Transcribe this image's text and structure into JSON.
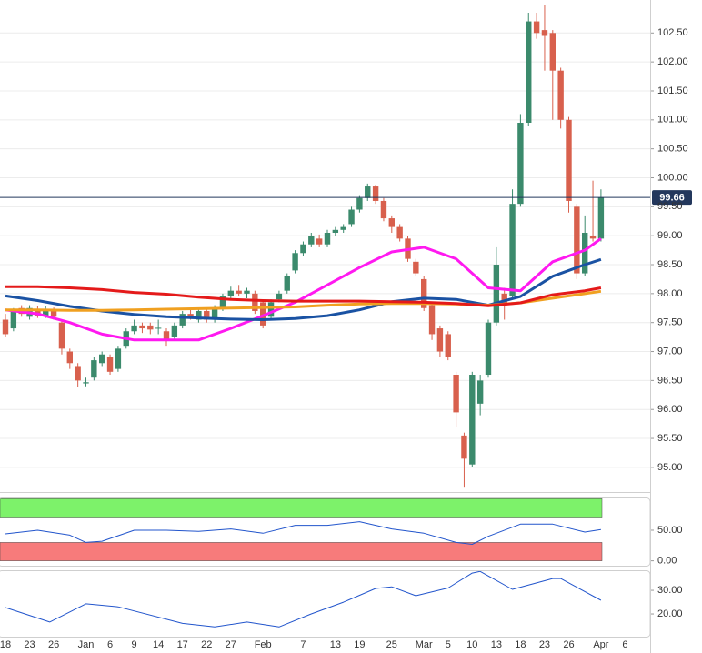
{
  "chart_data": [
    {
      "type": "candlestick",
      "categories": [
        "18",
        null,
        null,
        "23",
        null,
        null,
        "26",
        null,
        null,
        null,
        "Jan",
        null,
        null,
        "6",
        null,
        null,
        "9",
        null,
        null,
        "14",
        null,
        null,
        "17",
        null,
        null,
        "22",
        null,
        null,
        "27",
        null,
        null,
        null,
        "Feb",
        null,
        null,
        null,
        null,
        "7",
        null,
        null,
        null,
        "13",
        null,
        null,
        "19",
        null,
        null,
        null,
        "25",
        null,
        null,
        null,
        "Mar",
        null,
        null,
        "5",
        null,
        null,
        "10",
        null,
        null,
        "13",
        null,
        null,
        "18",
        null,
        null,
        "23",
        null,
        null,
        "26",
        null,
        null,
        null,
        "Apr",
        null,
        null,
        "6"
      ],
      "open": [
        97.55,
        97.4,
        97.75,
        97.6,
        97.72,
        97.62,
        97.7,
        97.5,
        97.0,
        96.75,
        96.45,
        96.55,
        96.8,
        96.9,
        96.7,
        97.1,
        97.35,
        97.45,
        97.45,
        97.4,
        97.35,
        97.25,
        97.45,
        97.65,
        97.55,
        97.7,
        97.55,
        97.75,
        97.95,
        98.05,
        98.0,
        98.0,
        97.85,
        97.6,
        97.9,
        98.05,
        98.4,
        98.7,
        98.85,
        98.95,
        98.85,
        99.05,
        99.1,
        99.2,
        99.45,
        99.65,
        99.85,
        99.6,
        99.3,
        99.15,
        98.95,
        98.55,
        98.25,
        97.8,
        97.4,
        97.3,
        96.6,
        95.55,
        95.05,
        96.1,
        96.6,
        97.5,
        98.0,
        97.95,
        99.55,
        100.95,
        102.7,
        102.55,
        102.5,
        101.85,
        101.0,
        99.5,
        98.35,
        99.0,
        98.95,
        null,
        null,
        null
      ],
      "high": [
        97.65,
        97.75,
        97.8,
        97.8,
        97.78,
        97.78,
        97.76,
        97.55,
        97.05,
        96.8,
        96.55,
        96.9,
        97.0,
        96.95,
        97.1,
        97.4,
        97.55,
        97.5,
        97.5,
        97.55,
        97.4,
        97.5,
        97.7,
        97.72,
        97.75,
        97.75,
        97.8,
        98.0,
        98.12,
        98.15,
        98.1,
        98.05,
        97.9,
        97.9,
        98.05,
        98.35,
        98.75,
        98.9,
        99.05,
        99.02,
        99.1,
        99.15,
        99.2,
        99.5,
        99.7,
        99.9,
        99.88,
        99.65,
        99.35,
        99.2,
        99.0,
        98.6,
        98.3,
        97.85,
        97.45,
        97.35,
        96.65,
        95.6,
        96.65,
        96.6,
        97.55,
        98.8,
        98.1,
        99.8,
        101.1,
        102.85,
        102.85,
        102.98,
        102.55,
        101.9,
        101.05,
        99.55,
        99.35,
        99.95,
        99.8,
        null,
        null,
        null
      ],
      "low": [
        97.25,
        97.35,
        97.6,
        97.55,
        97.58,
        97.58,
        97.55,
        96.95,
        96.7,
        96.38,
        96.4,
        96.5,
        96.75,
        96.6,
        96.65,
        97.05,
        97.3,
        97.32,
        97.3,
        97.3,
        97.1,
        97.2,
        97.4,
        97.55,
        97.5,
        97.5,
        97.5,
        97.7,
        97.9,
        97.95,
        97.92,
        97.65,
        97.4,
        97.55,
        97.85,
        98.0,
        98.35,
        98.65,
        98.8,
        98.8,
        98.8,
        99.0,
        99.05,
        99.15,
        99.4,
        99.6,
        99.55,
        99.25,
        99.05,
        98.9,
        98.55,
        98.3,
        97.7,
        97.2,
        96.9,
        96.85,
        95.7,
        94.65,
        95.0,
        95.9,
        96.55,
        97.45,
        97.55,
        97.9,
        99.5,
        100.9,
        102.4,
        101.85,
        101.0,
        100.85,
        99.4,
        98.25,
        98.3,
        98.9,
        98.9,
        null,
        null,
        null
      ],
      "close": [
        97.3,
        97.7,
        97.65,
        97.75,
        97.62,
        97.72,
        97.6,
        97.05,
        96.8,
        96.5,
        96.47,
        96.85,
        96.95,
        96.65,
        97.05,
        97.35,
        97.45,
        97.4,
        97.38,
        97.41,
        97.2,
        97.45,
        97.65,
        97.6,
        97.7,
        97.55,
        97.75,
        97.95,
        98.05,
        98.0,
        98.05,
        97.7,
        97.45,
        97.85,
        98.0,
        98.3,
        98.7,
        98.85,
        99.0,
        98.85,
        99.05,
        99.1,
        99.15,
        99.45,
        99.65,
        99.85,
        99.6,
        99.3,
        99.15,
        98.95,
        98.6,
        98.35,
        97.75,
        97.3,
        97.0,
        96.9,
        95.95,
        95.15,
        96.6,
        96.5,
        97.5,
        98.5,
        97.8,
        99.55,
        100.95,
        102.7,
        102.5,
        102.45,
        101.85,
        101.0,
        99.6,
        98.35,
        99.05,
        98.95,
        99.66,
        null,
        null,
        null
      ],
      "up_color": "#3b8a6c",
      "down_color": "#d8604d",
      "line_x": [
        0,
        4,
        8,
        12,
        16,
        20,
        24,
        28,
        32,
        36,
        40,
        44,
        48,
        52,
        56,
        60,
        64,
        68,
        72,
        74
      ],
      "lines": [
        {
          "color": "#ff19f0",
          "values": [
            97.72,
            97.65,
            97.5,
            97.3,
            97.2,
            97.2,
            97.2,
            97.4,
            97.62,
            97.85,
            98.15,
            98.45,
            98.72,
            98.8,
            98.6,
            98.1,
            98.05,
            98.55,
            98.75,
            98.95
          ]
        },
        {
          "color": "#1a52a3",
          "values": [
            97.96,
            97.88,
            97.78,
            97.7,
            97.64,
            97.6,
            97.58,
            97.56,
            97.55,
            97.57,
            97.62,
            97.72,
            97.86,
            97.92,
            97.9,
            97.8,
            97.95,
            98.3,
            98.5,
            98.59
          ]
        },
        {
          "color": "#f0a020",
          "values": [
            97.72,
            97.72,
            97.71,
            97.71,
            97.72,
            97.73,
            97.74,
            97.75,
            97.76,
            97.77,
            97.8,
            97.82,
            97.83,
            97.83,
            97.82,
            97.8,
            97.84,
            97.92,
            98.0,
            98.04
          ]
        },
        {
          "color": "#e41a1a",
          "values": [
            98.12,
            98.12,
            98.1,
            98.07,
            98.02,
            97.99,
            97.94,
            97.9,
            97.88,
            97.87,
            97.87,
            97.87,
            97.86,
            97.85,
            97.83,
            97.79,
            97.84,
            97.98,
            98.05,
            98.1
          ]
        }
      ],
      "last_value": 99.66,
      "last_color": "#23375c",
      "ylim": [
        94.59,
        103.07
      ],
      "yticks": [
        {
          "value": 95,
          "label": "95.00"
        },
        {
          "value": 95.5,
          "label": "95.50"
        },
        {
          "value": 96,
          "label": "96.00"
        },
        {
          "value": 96.5,
          "label": "96.50"
        },
        {
          "value": 97,
          "label": "97.00"
        },
        {
          "value": 97.5,
          "label": "97.50"
        },
        {
          "value": 98,
          "label": "98.00"
        },
        {
          "value": 98.5,
          "label": "98.50"
        },
        {
          "value": 99,
          "label": "99.00"
        },
        {
          "value": 99.5,
          "label": "99.50"
        },
        {
          "value": 100,
          "label": "100.00"
        },
        {
          "value": 100.5,
          "label": "100.50"
        },
        {
          "value": 101,
          "label": "101.00"
        },
        {
          "value": 101.5,
          "label": "101.50"
        },
        {
          "value": 102,
          "label": "102.00"
        },
        {
          "value": 102.5,
          "label": "102.50"
        }
      ],
      "grid": true
    },
    {
      "type": "line",
      "color": "#2255cc",
      "x": [
        0,
        4,
        8,
        10,
        12,
        16,
        20,
        24,
        28,
        32,
        36,
        40,
        44,
        48,
        52,
        56,
        58,
        60,
        64,
        68,
        72,
        74
      ],
      "values": [
        44,
        50,
        42,
        30,
        32,
        50,
        50,
        48,
        52,
        45,
        58,
        58,
        64,
        52,
        45,
        30,
        27,
        40,
        60,
        60,
        47,
        51
      ],
      "bands": [
        {
          "from": 70,
          "to": 101.5,
          "color": "#7df26a"
        },
        {
          "from": 0,
          "to": 30,
          "color": "#f77b7b"
        }
      ],
      "ylim": [
        -8,
        102
      ],
      "yticks": [
        {
          "value": 0,
          "label": "0.00"
        },
        {
          "value": 50,
          "label": "50.00"
        }
      ]
    },
    {
      "type": "line",
      "color": "#2255cc",
      "x": [
        0,
        5.5,
        10,
        14,
        22,
        26,
        30,
        34,
        38,
        42,
        46,
        48,
        51,
        55,
        58,
        59,
        63,
        68,
        69,
        74
      ],
      "values": [
        22.7,
        16.6,
        24.3,
        23.0,
        16.0,
        14.5,
        16.6,
        14.5,
        20.0,
        25.0,
        30.8,
        31.5,
        27.7,
        31.0,
        37.3,
        38.0,
        30.4,
        35.0,
        35.0,
        25.8
      ],
      "ylim": [
        10.4,
        38.1
      ],
      "yticks": [
        {
          "value": 20,
          "label": "20.00"
        },
        {
          "value": 30,
          "label": "30.00"
        }
      ]
    }
  ]
}
